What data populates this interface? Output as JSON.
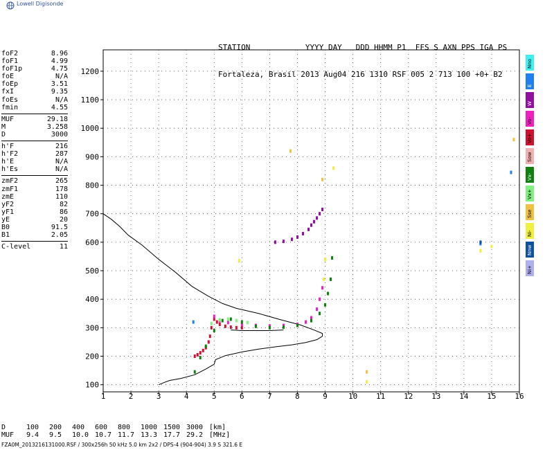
{
  "logo": {
    "text": "Lowell Digisonde",
    "icon": "globe-icon"
  },
  "header": {
    "line1": "STATION            YYYY DAY   DDD HHMM P1  FFS S AXN PPS IGA PS",
    "line2": "Fortaleza, Brasil 2013 Aug04 216 1310 RSF 005 2 713 100 +0+ B2"
  },
  "params": [
    [
      {
        "k": "foF2",
        "v": "8.96"
      },
      {
        "k": "foF1",
        "v": "4.99"
      },
      {
        "k": "foF1p",
        "v": "4.75"
      },
      {
        "k": "foE",
        "v": "N/A"
      },
      {
        "k": "foEp",
        "v": "3.51"
      },
      {
        "k": "fxI",
        "v": "9.35"
      },
      {
        "k": "foEs",
        "v": "N/A"
      },
      {
        "k": "fmin",
        "v": "4.55"
      }
    ],
    [
      {
        "k": "MUF",
        "v": "29.18"
      },
      {
        "k": "M",
        "v": "3.258"
      },
      {
        "k": "D",
        "v": "3000"
      }
    ],
    [
      {
        "k": "h'F",
        "v": "216"
      },
      {
        "k": "h'F2",
        "v": "287"
      },
      {
        "k": "h'E",
        "v": "N/A"
      },
      {
        "k": "h'Es",
        "v": "N/A"
      }
    ],
    [
      {
        "k": "zmF2",
        "v": "265"
      },
      {
        "k": "zmF1",
        "v": "178"
      },
      {
        "k": "zmE",
        "v": "110"
      },
      {
        "k": "yF2",
        "v": "82"
      },
      {
        "k": "yF1",
        "v": "86"
      },
      {
        "k": "yE",
        "v": "20"
      },
      {
        "k": "B0",
        "v": "91.5"
      },
      {
        "k": "B1",
        "v": "2.05"
      }
    ],
    [
      {
        "k": "C-level",
        "v": "11"
      }
    ]
  ],
  "bottom_table": {
    "d_label": "D",
    "d_values": [
      "100",
      "200",
      "400",
      "600",
      "800",
      "1000",
      "1500",
      "3000",
      "[km]"
    ],
    "muf_label": "MUF",
    "muf_values": [
      "9.4",
      "9.5",
      "10.0",
      "10.7",
      "11.7",
      "13.3",
      "17.7",
      "29.2",
      "[MHz]"
    ]
  },
  "footer": "FZA0M_2013216131000.RSF / 300x256h 50 kHz 5.0 km 2x2 / DPS-4 (904-904)   3.9 S 321.6 E",
  "legend": [
    {
      "label": "Nno",
      "color": "#40f0f0"
    },
    {
      "label": "E",
      "color": "#2080f0"
    },
    {
      "label": "W",
      "color": "#9010a0"
    },
    {
      "label": "Vo-",
      "color": "#f020c0"
    },
    {
      "label": "Vo+",
      "color": "#d01030"
    },
    {
      "label": "Sow",
      "color": "#f0b0b0"
    },
    {
      "label": "Vx-",
      "color": "#108010"
    },
    {
      "label": "Vx+",
      "color": "#80f080"
    },
    {
      "label": "Sse",
      "color": "#f0c040"
    },
    {
      "label": "Ni-",
      "color": "#f0f040"
    },
    {
      "label": "Nnw",
      "color": "#1050a0"
    },
    {
      "label": "Ni+",
      "color": "#b0b0f0"
    }
  ],
  "chart_data": {
    "type": "scatter",
    "title": "",
    "xlabel": "",
    "ylabel": "",
    "xlim": [
      1,
      16
    ],
    "ylim": [
      75,
      1275
    ],
    "xticks": [
      1,
      2,
      3,
      4,
      5,
      6,
      7,
      8,
      9,
      10,
      11,
      12,
      13,
      14,
      15,
      16
    ],
    "yticks": [
      100,
      200,
      300,
      400,
      500,
      600,
      700,
      800,
      900,
      1000,
      1100,
      1200
    ],
    "grid": true,
    "series": [
      {
        "color": "#d01030",
        "x": [
          4.3,
          4.4,
          4.5,
          4.6,
          4.7,
          4.8,
          4.85,
          4.9,
          5.0,
          5.1,
          5.2,
          5.4,
          5.6,
          5.8,
          6.0
        ],
        "y": [
          200,
          205,
          212,
          220,
          230,
          250,
          270,
          300,
          330,
          320,
          312,
          305,
          302,
          300,
          300
        ]
      },
      {
        "color": "#f020c0",
        "x": [
          5.0,
          5.2,
          5.5,
          6.0,
          6.5,
          7.0,
          7.5,
          8.0,
          8.3,
          8.5,
          8.7,
          8.8,
          8.9
        ],
        "y": [
          340,
          325,
          318,
          312,
          308,
          306,
          308,
          312,
          320,
          335,
          365,
          400,
          440
        ]
      },
      {
        "color": "#108010",
        "x": [
          4.3,
          4.5,
          4.7,
          5.0,
          5.3,
          5.6,
          6.0,
          6.5,
          7.0,
          7.5,
          8.0,
          8.5,
          8.8,
          9.0,
          9.1,
          9.2,
          9.25
        ],
        "y": [
          145,
          195,
          235,
          290,
          325,
          330,
          320,
          305,
          300,
          302,
          308,
          325,
          350,
          380,
          420,
          470,
          545
        ]
      },
      {
        "color": "#80f080",
        "x": [
          4.9,
          5.2,
          5.5,
          5.8,
          6.2
        ],
        "y": [
          315,
          328,
          330,
          325,
          318
        ]
      },
      {
        "color": "#9010a0",
        "x": [
          7.2,
          7.5,
          7.8,
          8.0,
          8.2,
          8.4,
          8.5,
          8.6,
          8.7,
          8.8,
          8.9
        ],
        "y": [
          600,
          603,
          610,
          618,
          630,
          645,
          660,
          672,
          685,
          700,
          715
        ]
      },
      {
        "color": "#f0f040",
        "x": [
          8.95,
          9.0,
          9.3,
          5.9,
          14.6,
          15.0,
          10.5
        ],
        "y": [
          470,
          540,
          860,
          535,
          570,
          585,
          110
        ]
      },
      {
        "color": "#f0c040",
        "x": [
          8.9,
          7.75,
          15.8,
          10.5
        ],
        "y": [
          820,
          920,
          960,
          145
        ]
      },
      {
        "color": "#2080f0",
        "x": [
          4.25,
          15.7,
          14.6
        ],
        "y": [
          320,
          845,
          595
        ]
      },
      {
        "color": "#1050a0",
        "x": [
          14.6
        ],
        "y": [
          600
        ]
      }
    ],
    "profile": {
      "x": [
        3.0,
        3.2,
        3.4,
        3.8,
        4.3,
        4.7,
        5.0,
        5.05,
        5.4,
        6.0,
        6.6,
        7.2,
        7.8,
        8.3,
        8.7,
        8.9,
        8.9,
        8.6,
        8.1,
        7.4,
        6.6,
        5.8,
        5.3,
        4.8,
        4.2,
        3.6,
        3.0,
        2.4,
        1.9,
        1.6,
        1.3,
        1.0
      ],
      "y": [
        100,
        108,
        115,
        122,
        135,
        155,
        172,
        188,
        202,
        215,
        225,
        233,
        240,
        248,
        258,
        270,
        280,
        292,
        310,
        328,
        350,
        368,
        385,
        410,
        445,
        495,
        540,
        590,
        625,
        655,
        680,
        700
      ]
    },
    "trace": {
      "x": [
        5.6,
        6.0,
        6.5,
        7.0,
        7.5
      ],
      "y": [
        292,
        290,
        290,
        290,
        292
      ]
    }
  }
}
